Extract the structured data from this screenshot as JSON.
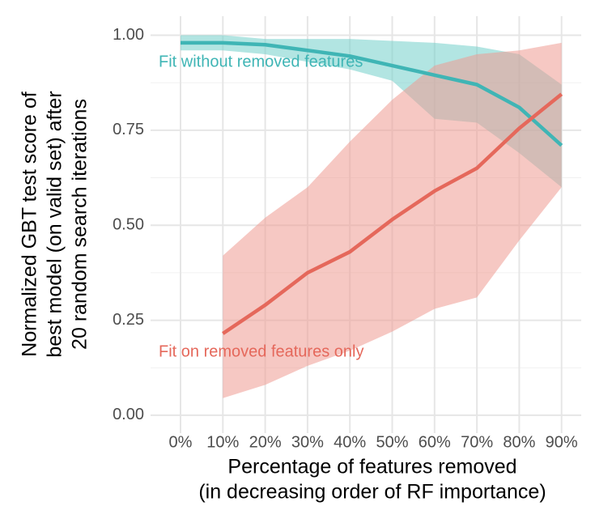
{
  "chart_data": {
    "type": "line",
    "ylabel": [
      "Normalized GBT test score of",
      "best model (on valid set) after",
      "20 random search iterations"
    ],
    "xlabel": [
      "Percentage of features removed",
      "(in decreasing order of RF importance)"
    ],
    "categories": [
      "0%",
      "10%",
      "20%",
      "30%",
      "40%",
      "50%",
      "60%",
      "70%",
      "80%",
      "90%"
    ],
    "ylim": [
      -0.047,
      1.05
    ],
    "yticks": [
      {
        "value": 0,
        "label": "0.00"
      },
      {
        "value": 0.25,
        "label": "0.25"
      },
      {
        "value": 0.5,
        "label": "0.50"
      },
      {
        "value": 0.75,
        "label": "0.75"
      },
      {
        "value": 1,
        "label": "1.00"
      }
    ],
    "grid": true,
    "series": [
      {
        "name": "Fit without removed features",
        "color": "#3fb5b5",
        "band_color": "#72cfca",
        "values": [
          0.98,
          0.98,
          0.975,
          0.96,
          0.945,
          0.92,
          0.895,
          0.87,
          0.81,
          0.71
        ],
        "lower": [
          0.96,
          0.96,
          0.95,
          0.93,
          0.91,
          0.88,
          0.78,
          0.77,
          0.69,
          0.6
        ],
        "upper": [
          1.0,
          1.0,
          0.99,
          0.99,
          0.99,
          0.985,
          0.98,
          0.97,
          0.95,
          0.87
        ]
      },
      {
        "name": "Fit on removed features only",
        "color": "#e5685b",
        "band_color": "#ef9a92",
        "values": [
          null,
          0.215,
          0.29,
          0.375,
          0.43,
          0.515,
          0.59,
          0.65,
          0.755,
          0.845
        ],
        "lower": [
          null,
          0.045,
          0.08,
          0.13,
          0.17,
          0.22,
          0.28,
          0.31,
          0.46,
          0.6
        ],
        "upper": [
          null,
          0.42,
          0.52,
          0.6,
          0.72,
          0.83,
          0.92,
          0.95,
          0.96,
          0.98
        ]
      }
    ]
  }
}
